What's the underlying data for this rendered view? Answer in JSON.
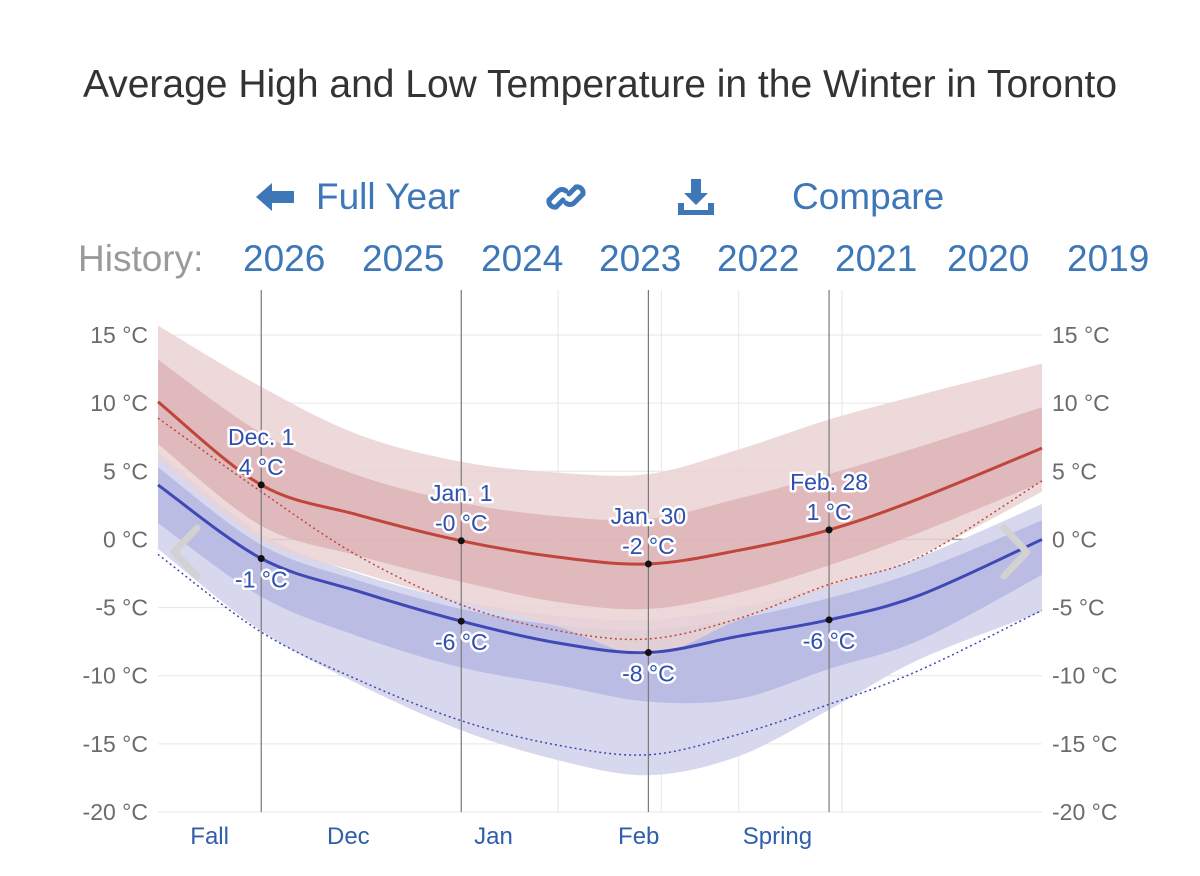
{
  "title": "Average High and Low Temperature in the Winter in Toronto",
  "toolbar": {
    "full_year": "Full Year",
    "compare": "Compare",
    "full_year_icon": "arrow-left-icon",
    "link_icon": "link-icon",
    "download_icon": "download-icon"
  },
  "history": {
    "label": "History:",
    "years": [
      "2026",
      "2025",
      "2024",
      "2023",
      "2022",
      "2021",
      "2020",
      "2019"
    ]
  },
  "nav": {
    "prev_icon": "chevron-left-icon",
    "next_icon": "chevron-right-icon"
  },
  "colors": {
    "high_line": "#c0463c",
    "low_line": "#3f49b5",
    "high_band_outer": "#ead2d3",
    "high_band_inner": "#ddb3b6",
    "low_band_outer": "#d7d7ee",
    "low_band_inner": "#b6b7e2",
    "link": "#3d77b8"
  },
  "chart_data": {
    "type": "line",
    "title": "Average High and Low Temperature in the Winter in Toronto",
    "y_unit": "°C",
    "ylim": [
      -20,
      15
    ],
    "y_ticks": [
      "15 °C",
      "10 °C",
      "5 °C",
      "0 °C",
      "-5 °C",
      "-10 °C",
      "-15 °C",
      "-20 °C"
    ],
    "y_tick_values": [
      15,
      10,
      5,
      0,
      -5,
      -10,
      -15,
      -20
    ],
    "x_unit": "days from Nov 15",
    "xlim": [
      0,
      137
    ],
    "season_labels": [
      "Fall",
      "Dec",
      "Jan",
      "Feb",
      "Spring"
    ],
    "season_centers": [
      8,
      29.5,
      52,
      74.5,
      96
    ],
    "season_dividers": [
      16,
      47,
      78,
      106
    ],
    "markers_x": [
      16,
      47,
      76,
      104
    ],
    "grid": true,
    "legend": "none",
    "series": [
      {
        "x": [
          0,
          16,
          31,
          47,
          62,
          76,
          90,
          104,
          118,
          137
        ],
        "mean": [
          10.1,
          4.0,
          1.8,
          -0.1,
          -1.3,
          -1.8,
          -0.8,
          0.7,
          3.0,
          6.7
        ],
        "p90": [
          15.7,
          11.2,
          7.7,
          5.7,
          4.9,
          4.8,
          6.6,
          8.8,
          10.6,
          12.9
        ],
        "p75": [
          13.2,
          7.8,
          4.7,
          2.7,
          1.7,
          1.5,
          3.0,
          4.8,
          6.8,
          9.7
        ],
        "p25": [
          7.0,
          1.0,
          -1.2,
          -3.1,
          -4.6,
          -5.1,
          -3.9,
          -1.9,
          0.5,
          4.2
        ],
        "p10": [
          6.0,
          0.0,
          -2.4,
          -4.6,
          -6.4,
          -8.5,
          -5.9,
          -3.5,
          -1.2,
          3.5
        ],
        "dotted": [
          8.9,
          3.5,
          -1.2,
          -4.8,
          -6.7,
          -7.3,
          -5.8,
          -3.3,
          -1.3,
          4.3
        ]
      },
      {
        "x": [
          0,
          16,
          31,
          47,
          62,
          76,
          90,
          104,
          118,
          137
        ],
        "mean": [
          4.0,
          -1.4,
          -3.8,
          -6.0,
          -7.6,
          -8.3,
          -7.1,
          -5.9,
          -4.1,
          0.0
        ],
        "p90": [
          6.4,
          0.4,
          -2.5,
          -4.5,
          -5.6,
          -5.9,
          -5.0,
          -3.4,
          -1.3,
          2.6
        ],
        "p75": [
          5.3,
          -0.4,
          -3.0,
          -5.1,
          -6.3,
          -6.6,
          -5.8,
          -4.3,
          -2.3,
          1.4
        ],
        "p25": [
          1.2,
          -4.2,
          -7.1,
          -9.4,
          -10.7,
          -11.9,
          -11.7,
          -9.5,
          -7.4,
          -2.6
        ],
        "p10": [
          -0.7,
          -6.7,
          -10.6,
          -14.0,
          -16.2,
          -17.3,
          -15.9,
          -12.5,
          -8.8,
          -5.3
        ],
        "dotted": [
          -1.1,
          -6.8,
          -10.3,
          -13.3,
          -15.1,
          -15.8,
          -14.3,
          -12.1,
          -9.6,
          -5.2
        ]
      }
    ],
    "annotations": [
      {
        "x": 16,
        "y": 4.0,
        "label1": "Dec. 1",
        "label2": "4 °C",
        "position": "above"
      },
      {
        "x": 16,
        "y": -1.4,
        "label2": "-1 °C",
        "position": "below"
      },
      {
        "x": 47,
        "y": -0.1,
        "label1": "Jan. 1",
        "label2": "-0 °C",
        "position": "above"
      },
      {
        "x": 47,
        "y": -6.0,
        "label2": "-6 °C",
        "position": "below"
      },
      {
        "x": 76,
        "y": -1.8,
        "label1": "Jan. 30",
        "label2": "-2 °C",
        "position": "above"
      },
      {
        "x": 76,
        "y": -8.3,
        "label2": "-8 °C",
        "position": "below"
      },
      {
        "x": 104,
        "y": 0.7,
        "label1": "Feb. 28",
        "label2": "1 °C",
        "position": "above"
      },
      {
        "x": 104,
        "y": -5.9,
        "label2": "-6 °C",
        "position": "below"
      }
    ]
  }
}
